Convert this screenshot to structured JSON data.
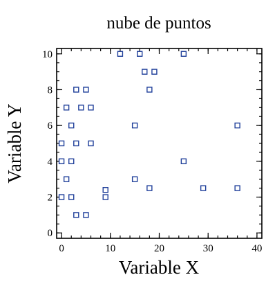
{
  "chart_data": {
    "type": "scatter",
    "title": "nube de puntos",
    "xlabel": "Variable X",
    "ylabel": "Variable Y",
    "xlim": [
      -1,
      41
    ],
    "ylim": [
      -0.3,
      10.3
    ],
    "x_ticks": [
      0,
      10,
      20,
      30,
      40
    ],
    "y_ticks": [
      0,
      2,
      4,
      6,
      8,
      10
    ],
    "x_minor_step": 2,
    "y_minor_step": 0.5,
    "grid": false,
    "legend": "none",
    "marker": "open-square",
    "marker_color": "#1f3f9a",
    "points": [
      {
        "x": 0,
        "y": 2
      },
      {
        "x": 0,
        "y": 4
      },
      {
        "x": 0,
        "y": 5
      },
      {
        "x": 1,
        "y": 3
      },
      {
        "x": 1,
        "y": 7
      },
      {
        "x": 2,
        "y": 2
      },
      {
        "x": 2,
        "y": 4
      },
      {
        "x": 2,
        "y": 6
      },
      {
        "x": 3,
        "y": 1
      },
      {
        "x": 3,
        "y": 5
      },
      {
        "x": 3,
        "y": 8
      },
      {
        "x": 4,
        "y": 7
      },
      {
        "x": 5,
        "y": 1
      },
      {
        "x": 5,
        "y": 8
      },
      {
        "x": 6,
        "y": 5
      },
      {
        "x": 6,
        "y": 7
      },
      {
        "x": 9,
        "y": 2
      },
      {
        "x": 9,
        "y": 2.4
      },
      {
        "x": 12,
        "y": 10
      },
      {
        "x": 15,
        "y": 3
      },
      {
        "x": 15,
        "y": 6
      },
      {
        "x": 16,
        "y": 10
      },
      {
        "x": 17,
        "y": 9
      },
      {
        "x": 18,
        "y": 2.5
      },
      {
        "x": 18,
        "y": 8
      },
      {
        "x": 19,
        "y": 9
      },
      {
        "x": 25,
        "y": 4
      },
      {
        "x": 25,
        "y": 10
      },
      {
        "x": 29,
        "y": 2.5
      },
      {
        "x": 36,
        "y": 2.5
      },
      {
        "x": 36,
        "y": 6
      }
    ]
  }
}
